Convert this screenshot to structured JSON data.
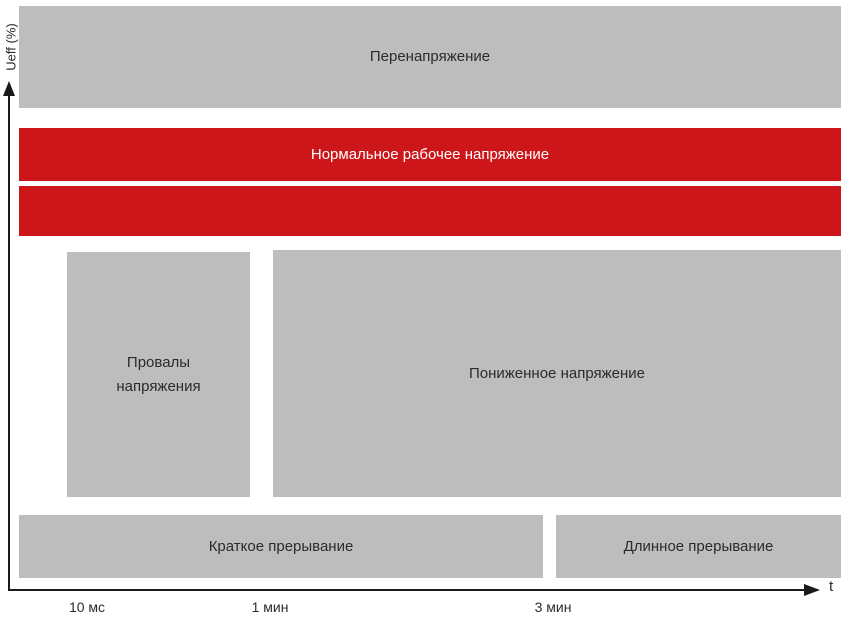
{
  "diagram": {
    "type": "voltage-quality-regions",
    "regions": {
      "overvoltage": {
        "label": "Перенапряжение",
        "color": "#bdbdbd",
        "text_color": "#2b2b2b"
      },
      "normal_voltage": {
        "label": "Нормальное рабочее напряжение",
        "color": "#cd1619",
        "text_color": "#ffffff"
      },
      "normal_voltage_band2": {
        "label": "",
        "color": "#cd1619"
      },
      "voltage_dips": {
        "label": "Провалы напряжения",
        "color": "#bdbdbd",
        "text_color": "#2b2b2b"
      },
      "undervoltage": {
        "label": "Пониженное напряжение",
        "color": "#bdbdbd",
        "text_color": "#2b2b2b"
      },
      "short_interruption": {
        "label": "Краткое прерывание",
        "color": "#bdbdbd",
        "text_color": "#2b2b2b"
      },
      "long_interruption": {
        "label": "Длинное прерывание",
        "color": "#bdbdbd",
        "text_color": "#2b2b2b"
      }
    },
    "axes": {
      "y_label": "Ueff (%)",
      "x_label": "t",
      "x_ticks": [
        {
          "label": "10 мс"
        },
        {
          "label": "1 мин"
        },
        {
          "label": "3 мин"
        }
      ]
    },
    "colors": {
      "region_gray": "#bdbdbd",
      "accent_red": "#cd1619",
      "axis_black": "#1a1a1a",
      "background": "#ffffff"
    }
  }
}
